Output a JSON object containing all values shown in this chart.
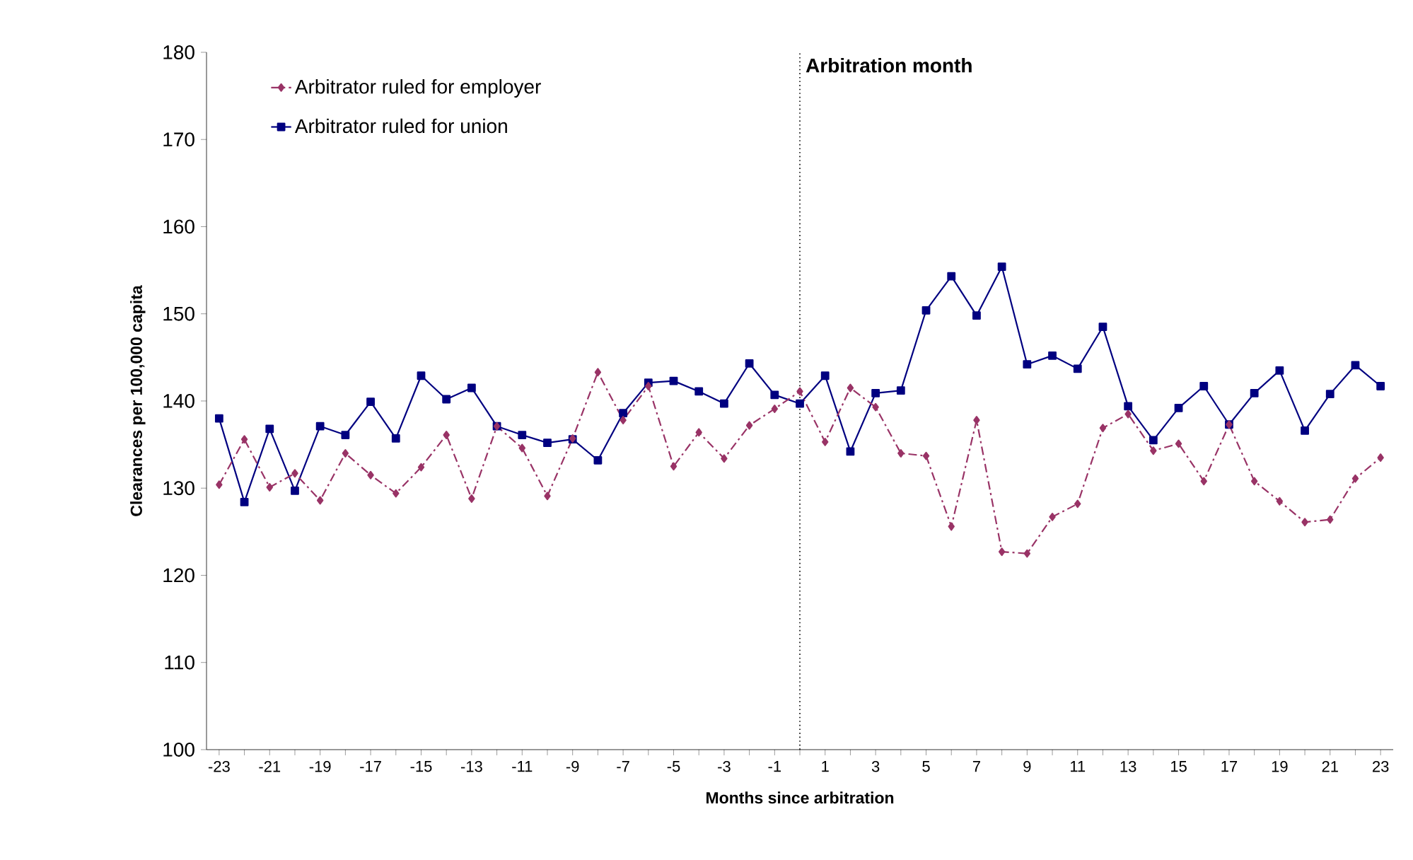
{
  "chart_data": {
    "type": "line",
    "xlabel": "Months since arbitration",
    "ylabel": "Clearances per 100,000 capita",
    "x": [
      -23,
      -22,
      -21,
      -20,
      -19,
      -18,
      -17,
      -16,
      -15,
      -14,
      -13,
      -12,
      -11,
      -10,
      -9,
      -8,
      -7,
      -6,
      -5,
      -4,
      -3,
      -2,
      -1,
      0,
      1,
      2,
      3,
      4,
      5,
      6,
      7,
      8,
      9,
      10,
      11,
      12,
      13,
      14,
      15,
      16,
      17,
      18,
      19,
      20,
      21,
      22,
      23
    ],
    "series": [
      {
        "name": "Arbitrator ruled for employer",
        "color": "#993366",
        "marker": "diamond",
        "line_style": "dashdot",
        "values": [
          130.4,
          135.6,
          130.1,
          131.7,
          128.6,
          134.0,
          131.5,
          129.4,
          132.4,
          136.1,
          128.8,
          137.1,
          134.6,
          129.1,
          135.7,
          143.3,
          137.8,
          141.7,
          132.5,
          136.4,
          133.4,
          137.2,
          139.1,
          141.1,
          135.3,
          141.5,
          139.3,
          134.0,
          133.7,
          125.6,
          137.8,
          122.7,
          122.5,
          126.7,
          128.2,
          136.9,
          138.5,
          134.3,
          135.1,
          130.8,
          137.3,
          130.8,
          128.5,
          126.1,
          126.4,
          131.1,
          133.5
        ]
      },
      {
        "name": "Arbitrator ruled for union",
        "color": "#000080",
        "marker": "square",
        "line_style": "solid",
        "values": [
          138.0,
          128.4,
          136.8,
          129.7,
          137.1,
          136.1,
          139.9,
          135.7,
          142.9,
          140.2,
          141.5,
          137.1,
          136.1,
          135.2,
          135.6,
          133.2,
          138.6,
          142.1,
          142.3,
          141.1,
          139.7,
          144.3,
          140.7,
          139.7,
          142.9,
          134.2,
          140.9,
          141.2,
          150.4,
          154.3,
          149.8,
          155.4,
          144.2,
          145.2,
          143.7,
          148.5,
          139.4,
          135.5,
          139.2,
          141.7,
          137.3,
          140.9,
          143.5,
          136.6,
          140.8,
          144.1,
          141.7
        ]
      }
    ],
    "xlim": [
      -23.5,
      23.5
    ],
    "ylim": [
      100,
      180
    ],
    "xticks": [
      -23,
      {
        "value": -22,
        "label": null
      },
      -21,
      {
        "value": -20,
        "label": null
      },
      -19,
      {
        "value": -18,
        "label": null
      },
      -17,
      {
        "value": -16,
        "label": null
      },
      -15,
      {
        "value": -14,
        "label": null
      },
      -13,
      {
        "value": -12,
        "label": null
      },
      -11,
      {
        "value": -10,
        "label": null
      },
      -9,
      {
        "value": -8,
        "label": null
      },
      -7,
      {
        "value": -6,
        "label": null
      },
      -5,
      {
        "value": -4,
        "label": null
      },
      -3,
      {
        "value": -2,
        "label": null
      },
      -1,
      {
        "value": 0,
        "label": null
      },
      1,
      {
        "value": 2,
        "label": null
      },
      3,
      {
        "value": 4,
        "label": null
      },
      5,
      {
        "value": 6,
        "label": null
      },
      7,
      {
        "value": 8,
        "label": null
      },
      9,
      {
        "value": 10,
        "label": null
      },
      11,
      {
        "value": 12,
        "label": null
      },
      13,
      {
        "value": 14,
        "label": null
      },
      15,
      {
        "value": 16,
        "label": null
      },
      17,
      {
        "value": 18,
        "label": null
      },
      19,
      {
        "value": 20,
        "label": null
      },
      21,
      {
        "value": 22,
        "label": null
      },
      23
    ],
    "yticks": [
      100,
      110,
      120,
      130,
      140,
      150,
      160,
      170,
      180
    ],
    "ref_lines": [
      {
        "axis": "x",
        "value": 0,
        "label": "Arbitration month",
        "color": "#000000",
        "line_style": "dotted"
      }
    ],
    "legend": "top left",
    "grid": false
  }
}
